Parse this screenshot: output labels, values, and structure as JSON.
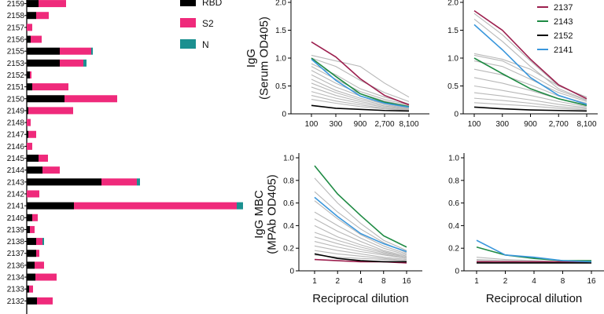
{
  "chart_data": [
    {
      "type": "bar",
      "stacked": true,
      "orientation": "horizontal",
      "categories": [
        "2159",
        "2158",
        "2157",
        "2156",
        "2155",
        "2153",
        "2152",
        "2151",
        "2150",
        "2149",
        "2148",
        "2147",
        "2146",
        "2145",
        "2144",
        "2143",
        "2142",
        "2141",
        "2140",
        "2139",
        "2138",
        "2137",
        "2136",
        "2134",
        "2133",
        "2132"
      ],
      "series": [
        {
          "name": "RBD",
          "color": "#000000",
          "values": [
            15,
            12,
            0,
            5,
            42,
            42,
            4,
            7,
            48,
            2,
            0,
            2,
            0,
            15,
            20,
            95,
            0,
            60,
            7,
            4,
            12,
            12,
            10,
            11,
            3,
            13
          ]
        },
        {
          "name": "S2",
          "color": "#ef2a7b",
          "values": [
            35,
            16,
            7,
            14,
            40,
            30,
            2,
            46,
            67,
            57,
            5,
            10,
            7,
            12,
            22,
            45,
            16,
            207,
            7,
            6,
            8,
            4,
            12,
            27,
            5,
            20
          ]
        },
        {
          "name": "N",
          "color": "#1b9090",
          "values": [
            0,
            0,
            0,
            0,
            2,
            4,
            0,
            0,
            0,
            0,
            0,
            0,
            0,
            0,
            0,
            4,
            0,
            8,
            0,
            0,
            2,
            0,
            0,
            0,
            0,
            0
          ]
        }
      ],
      "legend_position": "top-right"
    },
    {
      "type": "line",
      "ylabel": "IgG\n(Serum OD405)",
      "x": [
        "100",
        "300",
        "900",
        "2,700",
        "8,100"
      ],
      "ylim": [
        0,
        2.0
      ],
      "yticks": [
        "0",
        "0.5",
        "1.0",
        "1.5",
        "2.0"
      ],
      "series": [
        {
          "name": "2137",
          "color": "#9c1f4e",
          "values": [
            1.29,
            1.02,
            0.63,
            0.33,
            0.16
          ]
        },
        {
          "name": "2143",
          "color": "#1e8a43",
          "values": [
            1.0,
            0.67,
            0.36,
            0.21,
            0.13
          ]
        },
        {
          "name": "2152",
          "color": "#000000",
          "values": [
            0.15,
            0.1,
            0.08,
            0.06,
            0.05
          ]
        },
        {
          "name": "2141",
          "color": "#3a97dc",
          "values": [
            0.98,
            0.6,
            0.32,
            0.19,
            0.12
          ]
        }
      ],
      "gray_series": [
        [
          1.05,
          0.95,
          0.85,
          0.55,
          0.3
        ],
        [
          1.0,
          0.85,
          0.6,
          0.38,
          0.22
        ],
        [
          0.9,
          0.7,
          0.45,
          0.3,
          0.18
        ],
        [
          0.85,
          0.62,
          0.4,
          0.26,
          0.16
        ],
        [
          0.78,
          0.55,
          0.36,
          0.23,
          0.14
        ],
        [
          0.7,
          0.48,
          0.32,
          0.2,
          0.12
        ],
        [
          0.62,
          0.42,
          0.28,
          0.18,
          0.11
        ],
        [
          0.55,
          0.38,
          0.25,
          0.16,
          0.1
        ],
        [
          0.48,
          0.33,
          0.22,
          0.14,
          0.09
        ],
        [
          0.4,
          0.28,
          0.19,
          0.12,
          0.08
        ],
        [
          0.33,
          0.23,
          0.16,
          0.1,
          0.07
        ],
        [
          0.26,
          0.19,
          0.13,
          0.09,
          0.06
        ]
      ]
    },
    {
      "type": "line",
      "x": [
        "100",
        "300",
        "900",
        "2,700",
        "8,100"
      ],
      "ylim": [
        0,
        2.0
      ],
      "yticks": [
        "0",
        "0.5",
        "1.0",
        "1.5",
        "2.0"
      ],
      "series": [
        {
          "name": "2137",
          "color": "#9c1f4e",
          "values": [
            1.85,
            1.5,
            0.98,
            0.52,
            0.27
          ]
        },
        {
          "name": "2143",
          "color": "#1e8a43",
          "values": [
            1.0,
            0.72,
            0.45,
            0.27,
            0.15
          ]
        },
        {
          "name": "2152",
          "color": "#000000",
          "values": [
            0.12,
            0.09,
            0.07,
            0.06,
            0.05
          ]
        },
        {
          "name": "2141",
          "color": "#3a97dc",
          "values": [
            1.6,
            1.15,
            0.65,
            0.33,
            0.17
          ]
        }
      ],
      "gray_series": [
        [
          1.8,
          1.42,
          0.95,
          0.5,
          0.3
        ],
        [
          1.7,
          1.3,
          0.85,
          0.45,
          0.25
        ],
        [
          1.08,
          0.98,
          0.8,
          0.5,
          0.3
        ],
        [
          1.05,
          0.95,
          0.7,
          0.42,
          0.24
        ],
        [
          0.95,
          0.85,
          0.62,
          0.38,
          0.22
        ],
        [
          0.8,
          0.7,
          0.52,
          0.32,
          0.19
        ],
        [
          0.65,
          0.55,
          0.42,
          0.27,
          0.16
        ],
        [
          0.5,
          0.42,
          0.33,
          0.22,
          0.13
        ],
        [
          0.38,
          0.32,
          0.25,
          0.17,
          0.11
        ],
        [
          0.28,
          0.24,
          0.19,
          0.13,
          0.09
        ],
        [
          0.2,
          0.17,
          0.14,
          0.1,
          0.07
        ]
      ]
    },
    {
      "type": "line",
      "ylabel": "IgG MBC\n(MPAb OD405)",
      "xlabel": "Reciprocal dilution",
      "x": [
        "1",
        "2",
        "4",
        "8",
        "16"
      ],
      "ylim": [
        0,
        1.0
      ],
      "yticks": [
        "0",
        "0.2",
        "0.4",
        "0.6",
        "0.8",
        "1.0"
      ],
      "series": [
        {
          "name": "2137",
          "color": "#9c1f4e",
          "values": [
            0.1,
            0.09,
            0.08,
            0.08,
            0.07
          ]
        },
        {
          "name": "2143",
          "color": "#1e8a43",
          "values": [
            0.93,
            0.68,
            0.49,
            0.31,
            0.21
          ]
        },
        {
          "name": "2152",
          "color": "#000000",
          "values": [
            0.15,
            0.11,
            0.09,
            0.08,
            0.08
          ]
        },
        {
          "name": "2141",
          "color": "#3a97dc",
          "values": [
            0.65,
            0.48,
            0.33,
            0.24,
            0.17
          ]
        }
      ],
      "gray_series": [
        [
          0.82,
          0.6,
          0.42,
          0.27,
          0.18
        ],
        [
          0.7,
          0.52,
          0.37,
          0.25,
          0.16
        ],
        [
          0.62,
          0.46,
          0.32,
          0.22,
          0.15
        ],
        [
          0.52,
          0.4,
          0.29,
          0.2,
          0.14
        ],
        [
          0.46,
          0.35,
          0.26,
          0.18,
          0.13
        ],
        [
          0.4,
          0.3,
          0.23,
          0.17,
          0.12
        ],
        [
          0.34,
          0.27,
          0.21,
          0.16,
          0.12
        ],
        [
          0.3,
          0.24,
          0.19,
          0.15,
          0.11
        ],
        [
          0.26,
          0.21,
          0.17,
          0.14,
          0.11
        ],
        [
          0.22,
          0.18,
          0.15,
          0.12,
          0.1
        ],
        [
          0.18,
          0.15,
          0.13,
          0.11,
          0.09
        ],
        [
          0.14,
          0.12,
          0.11,
          0.1,
          0.09
        ]
      ]
    },
    {
      "type": "line",
      "xlabel": "Reciprocal dilution",
      "x": [
        "1",
        "2",
        "4",
        "8",
        "16"
      ],
      "ylim": [
        0,
        1.0
      ],
      "yticks": [
        "0",
        "0.2",
        "0.4",
        "0.6",
        "0.8",
        "1.0"
      ],
      "series": [
        {
          "name": "2137",
          "color": "#9c1f4e",
          "values": [
            0.08,
            0.08,
            0.08,
            0.08,
            0.08
          ]
        },
        {
          "name": "2143",
          "color": "#1e8a43",
          "values": [
            0.21,
            0.14,
            0.11,
            0.09,
            0.09
          ]
        },
        {
          "name": "2152",
          "color": "#000000",
          "values": [
            0.07,
            0.07,
            0.07,
            0.07,
            0.07
          ]
        },
        {
          "name": "2141",
          "color": "#3a97dc",
          "values": [
            0.27,
            0.14,
            0.12,
            0.09,
            0.08
          ]
        }
      ],
      "gray_series": [
        [
          0.12,
          0.1,
          0.09,
          0.08,
          0.08
        ],
        [
          0.1,
          0.09,
          0.08,
          0.08,
          0.07
        ],
        [
          0.09,
          0.08,
          0.08,
          0.07,
          0.07
        ]
      ]
    }
  ]
}
